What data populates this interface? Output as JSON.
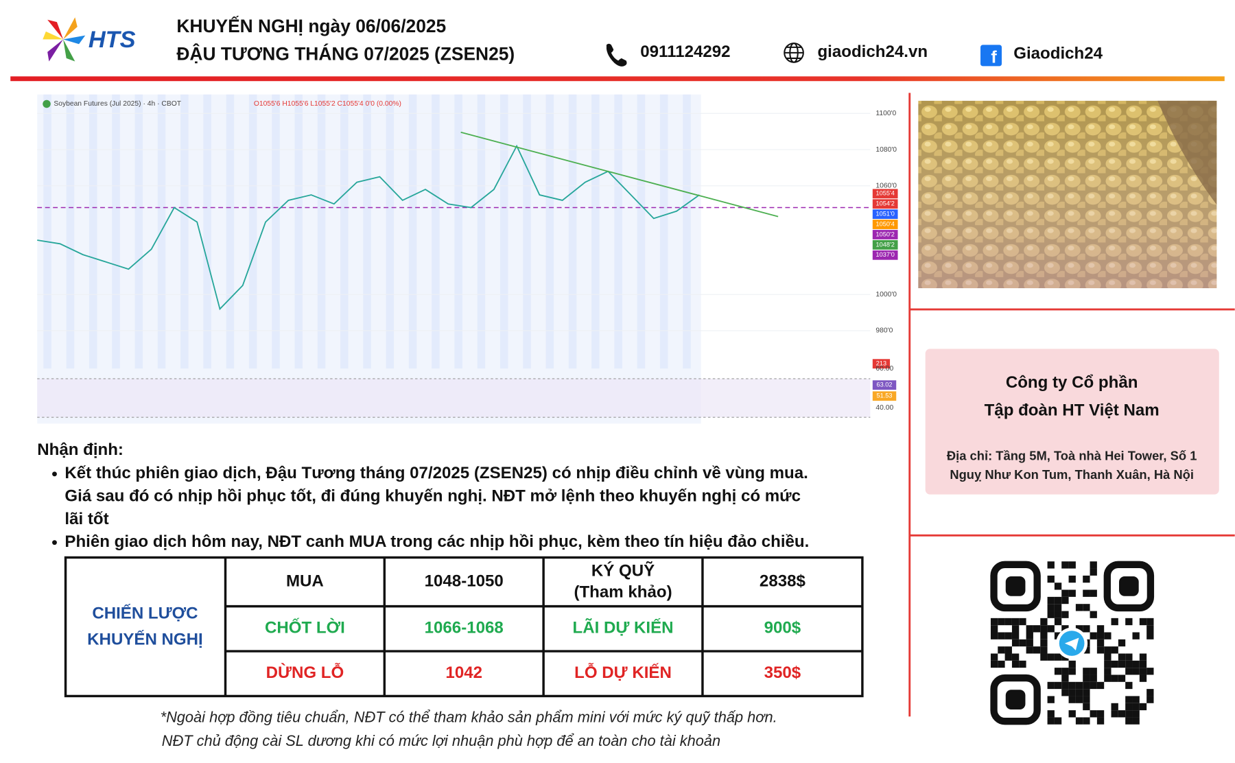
{
  "header": {
    "logo": "HTS",
    "title_line1": "KHUYẾN NGHỊ ngày 06/06/2025",
    "title_line2": "ĐẬU TƯƠNG THÁNG 07/2025 (ZSEN25)",
    "phone": "0911124292",
    "website": "giaodich24.vn",
    "facebook": "Giaodich24"
  },
  "chart_data": {
    "type": "line",
    "title": "Soybean Futures (Jul 2025) · 4h · CBOT",
    "ohlc": "O1055'6 H1055'6 L1055'2 C1055'4 0'0 (0.00%)",
    "color": "#26a69a",
    "values": [
      1030,
      1028,
      1022,
      1018,
      1014,
      1025,
      1048,
      1040,
      992,
      1005,
      1040,
      1052,
      1055,
      1050,
      1062,
      1065,
      1052,
      1058,
      1050,
      1048,
      1058,
      1082,
      1055,
      1052,
      1062,
      1068,
      1055,
      1042,
      1046,
      1055
    ],
    "ylim": [
      980,
      1100
    ],
    "yticks": [
      {
        "value": 1100,
        "label": "1100'0"
      },
      {
        "value": 1080,
        "label": "1080'0"
      },
      {
        "value": 1060,
        "label": "1060'0"
      },
      {
        "value": 1000,
        "label": "1000'0"
      },
      {
        "value": 980,
        "label": "980'0"
      }
    ],
    "price_labels": [
      {
        "value": 1055.5,
        "label": "1055'4",
        "color": "#e53935"
      },
      {
        "value": 1054.25,
        "label": "1054'2",
        "color": "#e53935"
      },
      {
        "value": 1051,
        "label": "1051'0",
        "color": "#2962ff"
      },
      {
        "value": 1050.5,
        "label": "1050'4",
        "color": "#ff9800"
      },
      {
        "value": 1050.25,
        "label": "1050'2",
        "color": "#9c27b0"
      },
      {
        "value": 1048.25,
        "label": "1048'2",
        "color": "#43a047"
      },
      {
        "value": 1037,
        "label": "1037'0",
        "color": "#9c27b0"
      }
    ],
    "volume_label": {
      "value": 213,
      "color": "#e53935"
    },
    "rsi_ticks": [
      {
        "value": 60,
        "label": "60.00"
      },
      {
        "value": 40,
        "label": "40.00"
      }
    ],
    "rsi_labels": [
      {
        "value": 63.02,
        "color": "#7e57c2"
      },
      {
        "value": 51.53,
        "color": "#f9a825"
      }
    ]
  },
  "analysis": {
    "heading": "Nhận định:",
    "bullets": [
      [
        "Kết thúc phiên giao dịch, Đậu Tương tháng 07/2025 (ZSEN25) có nhịp điều chỉnh về vùng mua.",
        "Giá sau đó có nhịp hồi phục tốt, đi đúng khuyến nghị. NĐT mở lệnh theo khuyến nghị có mức",
        "lãi tốt"
      ],
      [
        "Phiên giao dịch hôm nay, NĐT canh MUA trong các nhịp hồi phục, kèm theo tín hiệu đảo chiều."
      ]
    ]
  },
  "table": {
    "strategy": [
      "CHIẾN LƯỢC",
      "KHUYẾN NGHỊ"
    ],
    "rows": [
      {
        "color": "#111111",
        "cells": [
          [
            "MUA"
          ],
          [
            "1048-1050"
          ],
          [
            "KÝ QUỸ",
            "(Tham khảo)"
          ],
          [
            "2838$"
          ]
        ]
      },
      {
        "color": "#1faa4f",
        "cells": [
          [
            "CHỐT LỜI"
          ],
          [
            "1066-1068"
          ],
          [
            "LÃI DỰ KIẾN"
          ],
          [
            "900$"
          ]
        ]
      },
      {
        "color": "#e02424",
        "cells": [
          [
            "DỪNG LỖ"
          ],
          [
            "1042"
          ],
          [
            "LỖ DỰ KIẾN"
          ],
          [
            "350$"
          ]
        ]
      }
    ]
  },
  "notes": [
    "*Ngoài hợp đồng tiêu chuẩn, NĐT có thể tham khảo sản phẩm mini với mức ký quỹ thấp hơn.",
    "NĐT chủ động cài SL dương khi có mức lợi nhuận phù hợp để an toàn cho tài khoản"
  ],
  "company": {
    "line1": "Công ty Cổ phần",
    "line2": "Tập đoàn HT Việt Nam",
    "address1": "Địa chỉ: Tầng 5M, Toà nhà Hei Tower, Số 1",
    "address2": "Nguỵ Như Kon Tum, Thanh Xuân, Hà Nội"
  }
}
